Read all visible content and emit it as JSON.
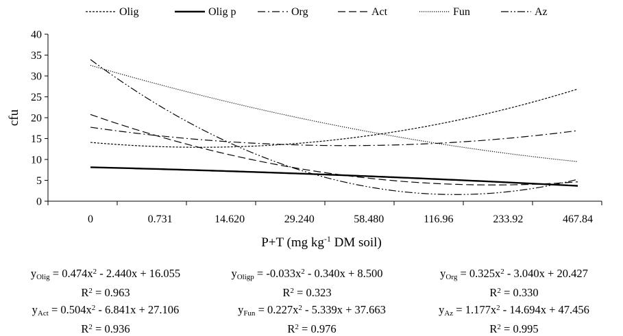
{
  "chart_data": {
    "type": "line",
    "xlabel": "P+T (mg kg",
    "xlabel_sup": "-1",
    "xlabel_suffix": " DM soil)",
    "ylabel": "cfu",
    "ylim": [
      0,
      40
    ],
    "yticks": [
      "0",
      "5",
      "10",
      "15",
      "20",
      "25",
      "30",
      "35",
      "40"
    ],
    "categories": [
      "0",
      "0.731",
      "14.620",
      "29.240",
      "58.480",
      "116.96",
      "233.92",
      "467.84"
    ],
    "legend_position": "top",
    "grid": false,
    "series": [
      {
        "name": "Olig",
        "a": 0.474,
        "b": -2.44,
        "c": 16.055,
        "style": "dashed-short",
        "stroke": 1.2
      },
      {
        "name": "Olig p",
        "a": -0.033,
        "b": -0.34,
        "c": 8.5,
        "style": "solid",
        "stroke": 2.4
      },
      {
        "name": "Org",
        "a": 0.325,
        "b": -3.04,
        "c": 20.427,
        "style": "dash-dot",
        "stroke": 1.2
      },
      {
        "name": "Act",
        "a": 0.504,
        "b": -6.841,
        "c": 27.106,
        "style": "dashed-long",
        "stroke": 1.2
      },
      {
        "name": "Fun",
        "a": 0.227,
        "b": -5.339,
        "c": 37.663,
        "style": "dotted",
        "stroke": 1.2
      },
      {
        "name": "Az",
        "a": 1.177,
        "b": -14.694,
        "c": 47.456,
        "style": "dash-dot-dot",
        "stroke": 1.2
      }
    ]
  },
  "equations": [
    {
      "y": "y",
      "sub": "Olig",
      "rhs_1": " = 0.474x",
      "rhs_2": " - 2.440x + 16.055",
      "r2_label": "R",
      "r2_value": " = 0.963"
    },
    {
      "y": "y",
      "sub": "Oligp",
      "rhs_1": " = -0.033x",
      "rhs_2": " - 0.340x + 8.500",
      "r2_label": "R",
      "r2_value": " = 0.323"
    },
    {
      "y": "y",
      "sub": "Org",
      "rhs_1": " = 0.325x",
      "rhs_2": " - 3.040x + 20.427",
      "r2_label": "R",
      "r2_value": " = 0.330"
    },
    {
      "y": "y",
      "sub": "Act",
      "rhs_1": " = 0.504x",
      "rhs_2": " - 6.841x + 27.106",
      "r2_label": "R",
      "r2_value": " = 0.936"
    },
    {
      "y": "y",
      "sub": "Fun",
      "rhs_1": " = 0.227x",
      "rhs_2": " - 5.339x + 37.663",
      "r2_label": "R",
      "r2_value": " = 0.976"
    },
    {
      "y": "y",
      "sub": "Az",
      "rhs_1": " = 1.177x",
      "rhs_2": " - 14.694x + 47.456",
      "r2_label": "R",
      "r2_value": " = 0.995"
    }
  ],
  "superscript_two": "2"
}
